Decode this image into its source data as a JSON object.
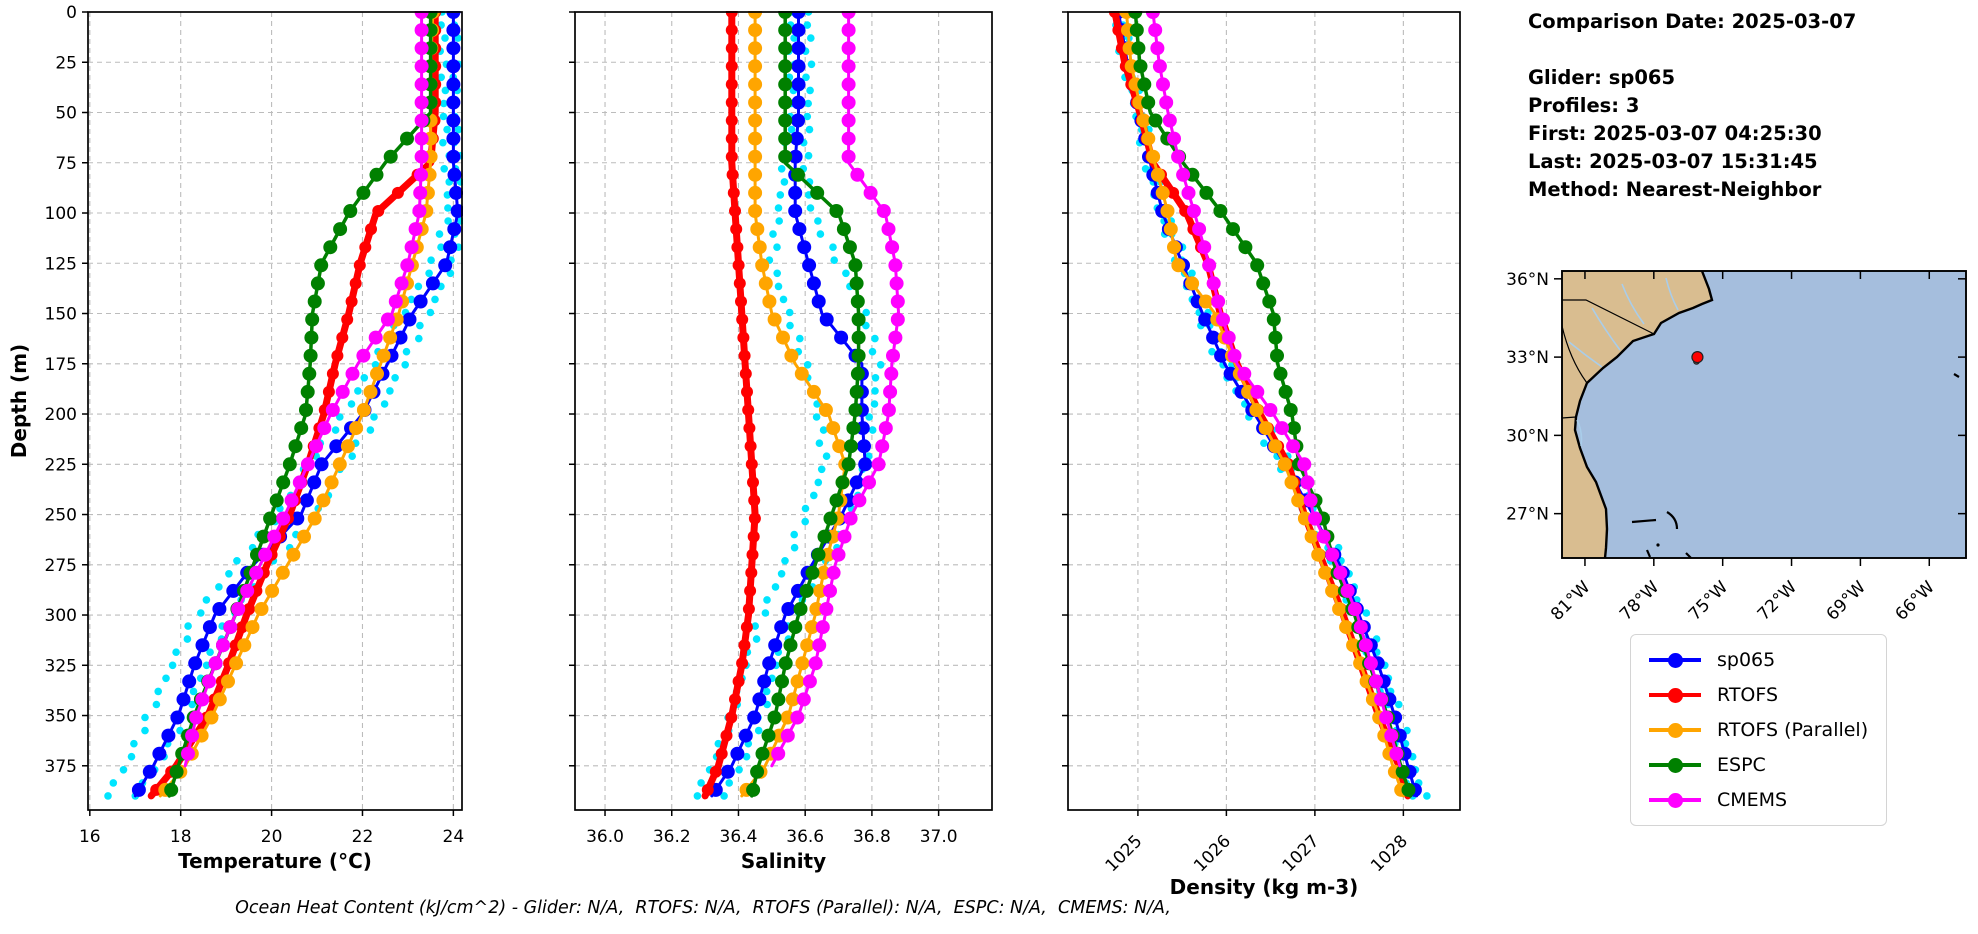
{
  "info_panel": {
    "lines": [
      "Comparison Date: 2025-03-07",
      "",
      "Glider: sp065",
      "Profiles: 3",
      "First: 2025-03-07 04:25:30",
      "Last: 2025-03-07 15:31:45",
      "Method: Nearest-Neighbor"
    ]
  },
  "legend": {
    "items": [
      {
        "label": "sp065",
        "color": "#0000ff"
      },
      {
        "label": "RTOFS",
        "color": "#ff0000"
      },
      {
        "label": "RTOFS (Parallel)",
        "color": "#ffa500"
      },
      {
        "label": "ESPC",
        "color": "#008000"
      },
      {
        "label": "CMEMS",
        "color": "#ff00ff"
      }
    ]
  },
  "profile_depths": [
    0,
    25,
    50,
    75,
    100,
    125,
    150,
    175,
    200,
    225,
    250,
    275,
    300,
    325,
    350,
    375,
    390
  ],
  "chart_data": [
    {
      "id": "temperature",
      "type": "line",
      "xlabel": "Temperature (°C)",
      "ylabel": "Depth (m)",
      "xlim": [
        15.96,
        24.19
      ],
      "ylim": [
        0,
        397
      ],
      "xticks": [
        16,
        18,
        20,
        22,
        24
      ],
      "xtick_labels": [
        "16",
        "18",
        "20",
        "22",
        "24"
      ],
      "yticks": [
        0,
        25,
        50,
        75,
        100,
        125,
        150,
        175,
        200,
        225,
        250,
        275,
        300,
        325,
        350,
        375
      ],
      "rotate_xticks": false,
      "grid": true,
      "series": [
        {
          "name": "glider-obs-a",
          "color": "#00e5ff",
          "style": "dots",
          "marker": 3.8,
          "values": [
            24.05,
            24.05,
            24.05,
            24.1,
            24.15,
            24.0,
            23.45,
            22.9,
            22.35,
            21.6,
            21.0,
            20.0,
            19.1,
            18.55,
            18.1,
            17.5,
            16.95
          ]
        },
        {
          "name": "glider-obs-b",
          "color": "#00e5ff",
          "style": "dots",
          "marker": 3.8,
          "values": [
            23.75,
            23.78,
            23.8,
            23.85,
            23.9,
            23.55,
            22.9,
            22.25,
            21.6,
            20.8,
            20.15,
            19.2,
            18.35,
            17.8,
            17.3,
            16.8,
            16.35
          ]
        },
        {
          "name": "sp065",
          "color": "#0000ff",
          "width": 3,
          "marker": 7,
          "values": [
            24.0,
            24.0,
            24.0,
            24.0,
            24.1,
            23.85,
            23.1,
            22.55,
            22.0,
            21.1,
            20.65,
            19.6,
            18.75,
            18.3,
            17.95,
            17.4,
            17.0
          ]
        },
        {
          "name": "RTOFS",
          "color": "#ff0000",
          "width": 7,
          "marker": 6,
          "values": [
            23.6,
            23.6,
            23.6,
            23.5,
            22.3,
            21.95,
            21.7,
            21.4,
            21.15,
            20.8,
            20.4,
            19.9,
            19.45,
            19.05,
            18.6,
            17.9,
            17.35
          ]
        },
        {
          "name": "RTOFS (Parallel)",
          "color": "#ffa500",
          "width": 3,
          "marker": 7,
          "values": [
            23.55,
            23.5,
            23.5,
            23.5,
            23.4,
            23.1,
            22.8,
            22.4,
            22.0,
            21.5,
            21.0,
            20.35,
            19.7,
            19.2,
            18.7,
            18.1,
            17.55
          ]
        },
        {
          "name": "ESPC",
          "color": "#008000",
          "width": 3.5,
          "marker": 7,
          "values": [
            23.5,
            23.5,
            23.5,
            22.5,
            21.7,
            21.1,
            20.9,
            20.85,
            20.75,
            20.4,
            20.0,
            19.6,
            19.2,
            18.75,
            18.3,
            17.95,
            17.75
          ]
        },
        {
          "name": "CMEMS",
          "color": "#ff00ff",
          "width": 3,
          "marker": 7,
          "values": [
            23.3,
            23.3,
            23.3,
            23.3,
            23.25,
            23.0,
            22.65,
            21.9,
            21.3,
            20.8,
            20.3,
            19.75,
            19.2,
            18.75,
            18.35,
            18.1,
            null
          ]
        }
      ]
    },
    {
      "id": "salinity",
      "type": "line",
      "xlabel": "Salinity",
      "ylabel": "",
      "xlim": [
        35.91,
        37.16
      ],
      "ylim": [
        0,
        397
      ],
      "xticks": [
        36.0,
        36.2,
        36.4,
        36.6,
        36.8,
        37.0
      ],
      "xtick_labels": [
        "36.0",
        "36.2",
        "36.4",
        "36.6",
        "36.8",
        "37.0"
      ],
      "yticks": [
        0,
        25,
        50,
        75,
        100,
        125,
        150,
        175,
        200,
        225,
        250,
        275,
        300,
        325,
        350,
        375
      ],
      "rotate_xticks": false,
      "grid": true,
      "series": [
        {
          "name": "glider-obs-a",
          "color": "#00e5ff",
          "style": "dots",
          "marker": 3.8,
          "values": [
            36.61,
            36.61,
            36.61,
            36.6,
            36.62,
            36.7,
            36.78,
            36.82,
            36.8,
            36.78,
            36.74,
            36.66,
            36.57,
            36.51,
            36.47,
            36.41,
            36.35
          ]
        },
        {
          "name": "glider-obs-b",
          "color": "#00e5ff",
          "style": "dots",
          "marker": 3.8,
          "values": [
            36.56,
            36.56,
            36.56,
            36.54,
            36.52,
            36.5,
            36.55,
            36.6,
            36.64,
            36.66,
            36.6,
            36.54,
            36.47,
            36.42,
            36.38,
            36.32,
            36.27
          ]
        },
        {
          "name": "sp065",
          "color": "#0000ff",
          "width": 3,
          "marker": 7,
          "values": [
            36.58,
            36.58,
            36.58,
            36.57,
            36.57,
            36.61,
            36.65,
            36.77,
            36.77,
            36.78,
            36.71,
            36.62,
            36.54,
            36.49,
            36.45,
            36.38,
            36.32
          ]
        },
        {
          "name": "RTOFS",
          "color": "#ff0000",
          "width": 7,
          "marker": 6,
          "values": [
            36.38,
            36.38,
            36.38,
            36.38,
            36.39,
            36.4,
            36.41,
            36.42,
            36.43,
            36.44,
            36.45,
            36.44,
            36.43,
            36.41,
            36.38,
            36.34,
            36.3
          ]
        },
        {
          "name": "RTOFS (Parallel)",
          "color": "#ffa500",
          "width": 3,
          "marker": 7,
          "values": [
            36.45,
            36.45,
            36.45,
            36.45,
            36.45,
            36.47,
            36.5,
            36.57,
            36.67,
            36.72,
            36.7,
            36.66,
            36.63,
            36.59,
            36.55,
            36.48,
            36.41
          ]
        },
        {
          "name": "ESPC",
          "color": "#008000",
          "width": 3.5,
          "marker": 7,
          "values": [
            36.54,
            36.54,
            36.54,
            36.54,
            36.7,
            36.75,
            36.76,
            36.76,
            36.75,
            36.73,
            36.68,
            36.63,
            36.58,
            36.54,
            36.51,
            36.46,
            36.44
          ]
        },
        {
          "name": "CMEMS",
          "color": "#ff00ff",
          "width": 3,
          "marker": 7,
          "values": [
            36.73,
            36.73,
            36.73,
            36.73,
            36.84,
            36.87,
            36.88,
            36.86,
            36.85,
            36.82,
            36.74,
            36.69,
            36.66,
            36.63,
            36.58,
            36.5,
            null
          ]
        }
      ]
    },
    {
      "id": "density",
      "type": "line",
      "xlabel": "Density (kg m-3)",
      "ylabel": "",
      "xlim": [
        1024.21,
        1028.64
      ],
      "ylim": [
        0,
        397
      ],
      "xticks": [
        1025,
        1026,
        1027,
        1028
      ],
      "xtick_labels": [
        "1025",
        "1026",
        "1027",
        "1028"
      ],
      "yticks": [
        0,
        25,
        50,
        75,
        100,
        125,
        150,
        175,
        200,
        225,
        250,
        275,
        300,
        325,
        350,
        375
      ],
      "rotate_xticks": true,
      "grid": true,
      "series": [
        {
          "name": "glider-obs-a",
          "color": "#00e5ff",
          "style": "dots",
          "marker": 3.8,
          "values": [
            1024.82,
            1024.92,
            1025.06,
            1025.18,
            1025.32,
            1025.54,
            1025.78,
            1026.03,
            1026.38,
            1026.72,
            1027.04,
            1027.34,
            1027.56,
            1027.78,
            1027.96,
            1028.12,
            1028.24
          ]
        },
        {
          "name": "glider-obs-b",
          "color": "#00e5ff",
          "style": "dots",
          "marker": 3.8,
          "values": [
            1024.74,
            1024.84,
            1024.98,
            1025.1,
            1025.24,
            1025.46,
            1025.68,
            1025.93,
            1026.26,
            1026.6,
            1026.92,
            1027.22,
            1027.44,
            1027.66,
            1027.84,
            1028.0,
            1028.08
          ]
        },
        {
          "name": "sp065",
          "color": "#0000ff",
          "width": 3,
          "marker": 7,
          "values": [
            1024.78,
            1024.88,
            1025.02,
            1025.14,
            1025.28,
            1025.5,
            1025.73,
            1025.98,
            1026.32,
            1026.66,
            1026.98,
            1027.28,
            1027.5,
            1027.72,
            1027.9,
            1028.05,
            1028.15
          ]
        },
        {
          "name": "RTOFS",
          "color": "#ff0000",
          "width": 7,
          "marker": 6,
          "values": [
            1024.74,
            1024.85,
            1025.02,
            1025.17,
            1025.55,
            1025.79,
            1025.93,
            1026.12,
            1026.38,
            1026.7,
            1026.88,
            1027.1,
            1027.32,
            1027.52,
            1027.72,
            1027.95,
            1028.05
          ]
        },
        {
          "name": "RTOFS (Parallel)",
          "color": "#ffa500",
          "width": 3,
          "marker": 7,
          "values": [
            1024.87,
            1024.92,
            1025.04,
            1025.19,
            1025.34,
            1025.44,
            1025.87,
            1026.1,
            1026.36,
            1026.66,
            1026.87,
            1027.08,
            1027.3,
            1027.52,
            1027.72,
            1027.88,
            1028.0
          ]
        },
        {
          "name": "ESPC",
          "color": "#008000",
          "width": 3.5,
          "marker": 7,
          "values": [
            1024.97,
            1025.02,
            1025.14,
            1025.51,
            1025.95,
            1026.34,
            1026.53,
            1026.58,
            1026.74,
            1026.82,
            1027.08,
            1027.22,
            1027.45,
            1027.62,
            1027.82,
            1027.97,
            1028.08
          ]
        },
        {
          "name": "CMEMS",
          "color": "#ff00ff",
          "width": 3,
          "marker": 7,
          "values": [
            1025.17,
            1025.24,
            1025.34,
            1025.47,
            1025.64,
            1025.8,
            1025.94,
            1026.12,
            1026.53,
            1026.88,
            1026.98,
            1027.25,
            1027.48,
            1027.64,
            1027.8,
            1027.96,
            null
          ]
        }
      ]
    }
  ],
  "map": {
    "lon_ticks": [
      {
        "label": "81°W",
        "lon": -81
      },
      {
        "label": "78°W",
        "lon": -78
      },
      {
        "label": "75°W",
        "lon": -75
      },
      {
        "label": "72°W",
        "lon": -72
      },
      {
        "label": "69°W",
        "lon": -69
      },
      {
        "label": "66°W",
        "lon": -66
      }
    ],
    "lat_ticks": [
      {
        "label": "36°N",
        "lat": 36
      },
      {
        "label": "33°N",
        "lat": 33
      },
      {
        "label": "30°N",
        "lat": 30
      },
      {
        "label": "27°N",
        "lat": 27
      }
    ],
    "extent": {
      "lon_min": -82,
      "lon_max": -64.4,
      "lat_min": 25.3,
      "lat_max": 36.3
    },
    "glider_marker": {
      "lon": -76.1,
      "lat": 33.0,
      "color": "#ff0000"
    },
    "profile_dots": [
      {
        "lon": -76.14,
        "lat": 32.84
      },
      {
        "lon": -76.09,
        "lat": 32.9
      }
    ],
    "colors": {
      "ocean": "#a5bedd",
      "land": "#d9bd90",
      "coast": "#000000",
      "river": "#a9cdea"
    }
  },
  "footer": {
    "text": "Ocean Heat Content (kJ/cm^2) - Glider: N/A,  RTOFS: N/A,  RTOFS (Parallel): N/A,  ESPC: N/A,  CMEMS: N/A,"
  }
}
